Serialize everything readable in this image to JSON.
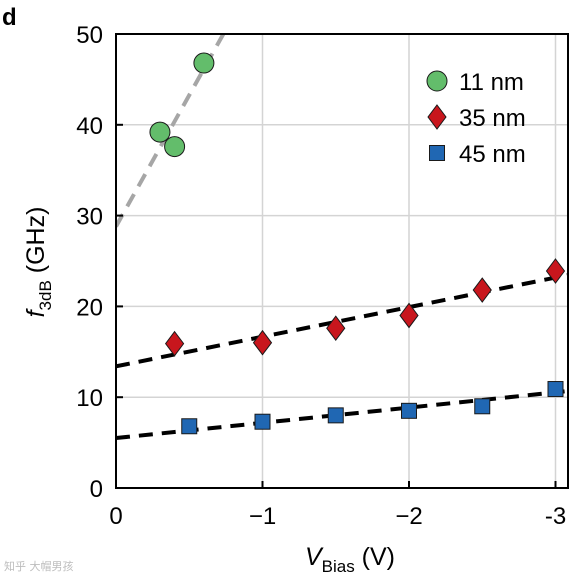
{
  "panel_label": "d",
  "watermark": "知乎 大帽男孩",
  "chart_data": {
    "type": "scatter",
    "title": "",
    "ylabel": {
      "main": "f",
      "sub": "3dB",
      "suffix": " (GHz)"
    },
    "xlabel": {
      "main": "V",
      "sub": "Bias",
      "suffix": " (V)"
    },
    "x_axis": {
      "ticks": [
        0,
        -1,
        -2,
        -3
      ],
      "tick_labels": [
        "0",
        "−1",
        "−2",
        "-3"
      ],
      "range": [
        0,
        -3.1
      ],
      "reversed": true
    },
    "y_axis": {
      "ticks": [
        0,
        10,
        20,
        30,
        40,
        50
      ],
      "tick_labels": [
        "0",
        "10",
        "20",
        "30",
        "40",
        "50"
      ],
      "range": [
        0,
        50
      ]
    },
    "grid": true,
    "legend_position": "top-right",
    "series": [
      {
        "name": "11 nm",
        "marker": "circle",
        "color": "#63bd6b",
        "points": [
          [
            -0.3,
            39.2
          ],
          [
            -0.4,
            37.6
          ],
          [
            -0.6,
            46.8
          ]
        ],
        "fit": {
          "x": [
            0,
            -0.75
          ],
          "y": [
            28.8,
            50.5
          ],
          "color": "#a6a6a6"
        }
      },
      {
        "name": "35 nm",
        "marker": "diamond",
        "color": "#c8161d",
        "points": [
          [
            -0.4,
            15.9
          ],
          [
            -1.0,
            16.0
          ],
          [
            -1.5,
            17.6
          ],
          [
            -2.0,
            19.0
          ],
          [
            -2.5,
            21.8
          ],
          [
            -3.0,
            23.9
          ]
        ],
        "fit": {
          "x": [
            0,
            -3.1
          ],
          "y": [
            13.4,
            23.5
          ],
          "color": "#000000"
        }
      },
      {
        "name": "45 nm",
        "marker": "square",
        "color": "#2067b3",
        "points": [
          [
            -0.5,
            6.8
          ],
          [
            -1.0,
            7.3
          ],
          [
            -1.5,
            8.0
          ],
          [
            -2.0,
            8.5
          ],
          [
            -2.5,
            9.0
          ],
          [
            -3.0,
            10.9
          ]
        ],
        "fit": {
          "x": [
            0,
            -3.1
          ],
          "y": [
            5.5,
            10.7
          ],
          "color": "#000000"
        }
      }
    ]
  }
}
